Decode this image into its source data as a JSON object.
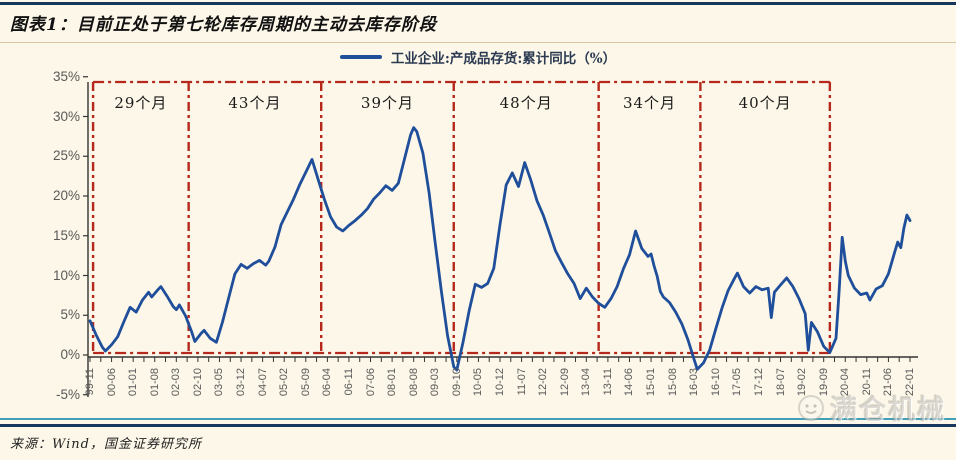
{
  "header": {
    "title": "图表1：目前正处于第七轮库存周期的主动去库存阶段"
  },
  "legend": {
    "label": "工业企业:产成品存货:累计同比（%）"
  },
  "footer": {
    "source": "来源：Wind，国金证券研究所",
    "watermark": "满仓机械"
  },
  "colors": {
    "background": "#FCF7E8",
    "line": "#1F4E9B",
    "cycle_box": "#B6281C",
    "axis": "#333333",
    "axis_text": "#595959",
    "header_rule": "#17375E",
    "teal_rule": "#41A0B8"
  },
  "chart_data": {
    "type": "line",
    "title": "图表1：目前正处于第七轮库存周期的主动去库存阶段",
    "series_name": "工业企业:产成品存货:累计同比（%）",
    "ylabel": "",
    "xlabel": "",
    "ylim": [
      -5,
      35
    ],
    "y_tick_labels": [
      "35%",
      "30%",
      "25%",
      "20%",
      "15%",
      "10%",
      "5%",
      "0%",
      "-5%"
    ],
    "x_tick_labels": [
      "99-11",
      "00-06",
      "01-01",
      "01-08",
      "02-03",
      "02-10",
      "03-05",
      "03-12",
      "04-07",
      "05-02",
      "05-09",
      "06-04",
      "06-11",
      "07-06",
      "08-01",
      "08-08",
      "09-03",
      "09-10",
      "10-05",
      "10-12",
      "11-07",
      "12-02",
      "12-09",
      "13-04",
      "13-11",
      "14-06",
      "15-01",
      "15-08",
      "16-03",
      "16-10",
      "17-05",
      "17-12",
      "18-07",
      "19-02",
      "19-09",
      "20-04",
      "20-11",
      "21-06",
      "22-01"
    ],
    "grid": false,
    "legend_position": "top-center",
    "cycles": [
      {
        "label": "29个月",
        "start": "99-12",
        "end": "02-07"
      },
      {
        "label": "43个月",
        "start": "02-07",
        "end": "06-02"
      },
      {
        "label": "39个月",
        "start": "06-02",
        "end": "09-09"
      },
      {
        "label": "48个月",
        "start": "09-09",
        "end": "13-08"
      },
      {
        "label": "34个月",
        "start": "13-08",
        "end": "16-05"
      },
      {
        "label": "40个月",
        "start": "16-05",
        "end": "19-11"
      }
    ],
    "points": [
      [
        "99-11",
        4.3
      ],
      [
        "00-01",
        2.5
      ],
      [
        "00-03",
        1.0
      ],
      [
        "00-04",
        0.5
      ],
      [
        "00-06",
        1.3
      ],
      [
        "00-08",
        2.3
      ],
      [
        "00-10",
        4.2
      ],
      [
        "00-12",
        6.0
      ],
      [
        "01-02",
        5.4
      ],
      [
        "01-04",
        6.9
      ],
      [
        "01-06",
        7.9
      ],
      [
        "01-07",
        7.3
      ],
      [
        "01-09",
        8.2
      ],
      [
        "01-10",
        8.6
      ],
      [
        "01-12",
        7.4
      ],
      [
        "02-02",
        6.1
      ],
      [
        "02-03",
        5.7
      ],
      [
        "02-04",
        6.3
      ],
      [
        "02-06",
        4.9
      ],
      [
        "02-08",
        2.9
      ],
      [
        "02-09",
        1.7
      ],
      [
        "02-11",
        2.7
      ],
      [
        "02-12",
        3.1
      ],
      [
        "03-02",
        2.1
      ],
      [
        "03-04",
        1.6
      ],
      [
        "03-06",
        4.2
      ],
      [
        "03-08",
        7.2
      ],
      [
        "03-10",
        10.2
      ],
      [
        "03-12",
        11.4
      ],
      [
        "04-02",
        10.9
      ],
      [
        "04-04",
        11.5
      ],
      [
        "04-06",
        11.9
      ],
      [
        "04-08",
        11.3
      ],
      [
        "04-09",
        11.8
      ],
      [
        "04-11",
        13.6
      ],
      [
        "05-01",
        16.4
      ],
      [
        "05-03",
        18.0
      ],
      [
        "05-05",
        19.6
      ],
      [
        "05-07",
        21.4
      ],
      [
        "05-09",
        23.0
      ],
      [
        "05-11",
        24.6
      ],
      [
        "06-01",
        22.1
      ],
      [
        "06-03",
        19.6
      ],
      [
        "06-05",
        17.4
      ],
      [
        "06-07",
        16.1
      ],
      [
        "06-09",
        15.6
      ],
      [
        "06-11",
        16.3
      ],
      [
        "07-01",
        16.9
      ],
      [
        "07-03",
        17.6
      ],
      [
        "07-05",
        18.4
      ],
      [
        "07-07",
        19.6
      ],
      [
        "07-09",
        20.4
      ],
      [
        "07-11",
        21.3
      ],
      [
        "08-01",
        20.7
      ],
      [
        "08-03",
        21.6
      ],
      [
        "08-05",
        24.6
      ],
      [
        "08-07",
        27.7
      ],
      [
        "08-08",
        28.6
      ],
      [
        "08-09",
        28.1
      ],
      [
        "08-11",
        25.4
      ],
      [
        "09-01",
        20.4
      ],
      [
        "09-03",
        14.0
      ],
      [
        "09-05",
        8.0
      ],
      [
        "09-07",
        2.4
      ],
      [
        "09-09",
        -1.5
      ],
      [
        "09-10",
        -1.9
      ],
      [
        "09-12",
        1.6
      ],
      [
        "10-02",
        5.6
      ],
      [
        "10-04",
        8.9
      ],
      [
        "10-06",
        8.5
      ],
      [
        "10-08",
        9.0
      ],
      [
        "10-10",
        10.9
      ],
      [
        "10-12",
        16.4
      ],
      [
        "11-02",
        21.4
      ],
      [
        "11-04",
        22.9
      ],
      [
        "11-06",
        21.2
      ],
      [
        "11-08",
        24.2
      ],
      [
        "11-10",
        22.0
      ],
      [
        "11-12",
        19.4
      ],
      [
        "12-02",
        17.6
      ],
      [
        "12-04",
        15.4
      ],
      [
        "12-06",
        13.1
      ],
      [
        "12-08",
        11.6
      ],
      [
        "12-10",
        10.2
      ],
      [
        "12-12",
        9.0
      ],
      [
        "13-02",
        7.1
      ],
      [
        "13-04",
        8.4
      ],
      [
        "13-06",
        7.3
      ],
      [
        "13-08",
        6.5
      ],
      [
        "13-10",
        6.0
      ],
      [
        "13-12",
        7.1
      ],
      [
        "14-02",
        8.6
      ],
      [
        "14-04",
        10.8
      ],
      [
        "14-06",
        12.6
      ],
      [
        "14-08",
        15.6
      ],
      [
        "14-10",
        13.4
      ],
      [
        "14-12",
        12.4
      ],
      [
        "15-01",
        12.7
      ],
      [
        "15-02",
        11.2
      ],
      [
        "15-03",
        9.9
      ],
      [
        "15-04",
        8.0
      ],
      [
        "15-05",
        7.3
      ],
      [
        "15-07",
        6.6
      ],
      [
        "15-09",
        5.4
      ],
      [
        "15-11",
        3.9
      ],
      [
        "16-01",
        1.9
      ],
      [
        "16-03",
        -0.6
      ],
      [
        "16-04",
        -1.8
      ],
      [
        "16-06",
        -1.0
      ],
      [
        "16-08",
        0.6
      ],
      [
        "16-10",
        3.3
      ],
      [
        "16-12",
        5.9
      ],
      [
        "17-02",
        8.1
      ],
      [
        "17-04",
        9.6
      ],
      [
        "17-05",
        10.3
      ],
      [
        "17-07",
        8.6
      ],
      [
        "17-09",
        7.8
      ],
      [
        "17-11",
        8.6
      ],
      [
        "18-01",
        8.2
      ],
      [
        "18-03",
        8.4
      ],
      [
        "18-04",
        4.7
      ],
      [
        "18-05",
        7.9
      ],
      [
        "18-07",
        8.8
      ],
      [
        "18-09",
        9.7
      ],
      [
        "18-11",
        8.6
      ],
      [
        "19-01",
        7.1
      ],
      [
        "19-03",
        5.2
      ],
      [
        "19-04",
        0.6
      ],
      [
        "19-05",
        4.1
      ],
      [
        "19-07",
        2.9
      ],
      [
        "19-09",
        1.1
      ],
      [
        "19-11",
        0.3
      ],
      [
        "20-01",
        2.1
      ],
      [
        "20-02",
        8.0
      ],
      [
        "20-03",
        14.8
      ],
      [
        "20-04",
        11.8
      ],
      [
        "20-05",
        10.0
      ],
      [
        "20-07",
        8.4
      ],
      [
        "20-09",
        7.6
      ],
      [
        "20-11",
        7.8
      ],
      [
        "20-12",
        6.9
      ],
      [
        "21-02",
        8.3
      ],
      [
        "21-04",
        8.7
      ],
      [
        "21-06",
        10.2
      ],
      [
        "21-08",
        12.9
      ],
      [
        "21-09",
        14.2
      ],
      [
        "21-10",
        13.5
      ],
      [
        "21-11",
        15.9
      ],
      [
        "21-12",
        17.6
      ],
      [
        "22-01",
        16.9
      ]
    ]
  }
}
